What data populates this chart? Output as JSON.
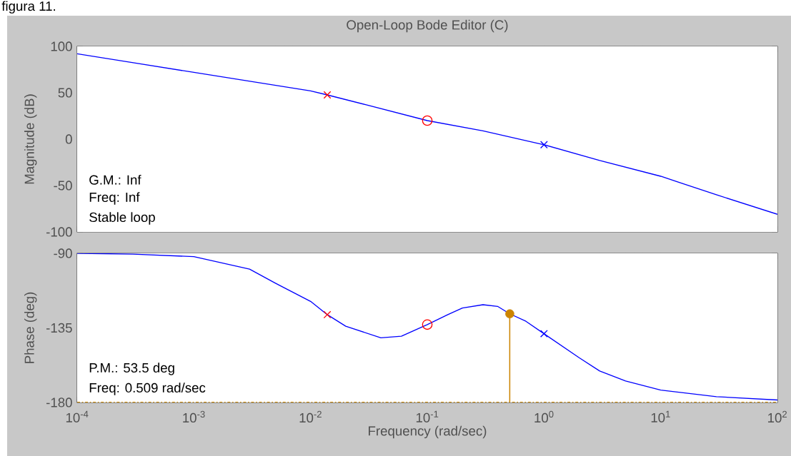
{
  "chart_data": [
    {
      "type": "line",
      "title": "Open-Loop Bode Editor (C)",
      "ylabel": "Magnitude (dB)",
      "log": "x",
      "tick_labels": "y",
      "xlim": [
        0.0001,
        100
      ],
      "ylim": [
        -100,
        100
      ],
      "xticks": [
        0.0001,
        0.001,
        0.01,
        0.1,
        1,
        10,
        100
      ],
      "yticks": [
        -100,
        -50,
        0,
        50,
        100
      ],
      "annotations": [
        "figura 11.",
        "G.M.: Inf",
        "Freq: Inf",
        "Stable loop"
      ],
      "series": [
        {
          "color": "#0000ff",
          "x": [
            0.0001,
            0.000316,
            0.001,
            0.00316,
            0.01,
            0.0139,
            0.03,
            0.1,
            0.3,
            1,
            3,
            10,
            30,
            100
          ],
          "values": [
            92,
            82,
            72,
            62,
            52,
            47.7,
            37,
            20,
            9,
            -6,
            -23,
            -40,
            -60,
            -81
          ]
        },
        {
          "type": "scatter",
          "color": "#ff0000",
          "marker": "cross",
          "x": [
            0.0139
          ],
          "values": [
            47.7
          ]
        },
        {
          "type": "scatter",
          "color": "#ff0000",
          "marker": "circle",
          "x": [
            0.1
          ],
          "values": [
            20
          ]
        },
        {
          "type": "scatter",
          "color": "#0000ff",
          "marker": "cross",
          "x": [
            1
          ],
          "values": [
            -6
          ]
        }
      ]
    },
    {
      "type": "line",
      "xlabel": "Frequency (rad/sec)",
      "ylabel": "Phase (deg)",
      "log": "x",
      "xlim": [
        0.0001,
        100
      ],
      "ylim": [
        -180,
        -90
      ],
      "xticks": [
        {
          "value": 0.0001,
          "label": "10$^{-4}$"
        },
        {
          "value": 0.001,
          "label": "10$^{-3}$"
        },
        {
          "value": 0.01,
          "label": "10$^{-2}$"
        },
        {
          "value": 0.1,
          "label": "10$^{-1}$"
        },
        {
          "value": 1,
          "label": "10$^{0}$"
        },
        {
          "value": 10,
          "label": "10$^{1}$"
        },
        {
          "value": 100,
          "label": "10$^{2}$"
        }
      ],
      "yticks": [
        -90,
        -135,
        -180
      ],
      "annotations": [
        "P.M.: 53.5 deg",
        "Freq: 0.509 rad/sec"
      ],
      "ref_lines": [
        {
          "axis": "y",
          "value": -180,
          "color": "#d08a00",
          "line_style": "dashdot"
        }
      ],
      "series": [
        {
          "color": "#0000ff",
          "x": [
            0.0001,
            0.0003,
            0.001,
            0.003,
            0.005,
            0.01,
            0.0139,
            0.02,
            0.04,
            0.06,
            0.1,
            0.15,
            0.2,
            0.3,
            0.4,
            0.509,
            0.7,
            1,
            2,
            3,
            5,
            10,
            30,
            100
          ],
          "values": [
            -90,
            -90.5,
            -92,
            -99.5,
            -108,
            -119,
            -127,
            -134,
            -141,
            -140,
            -133,
            -127,
            -123,
            -121,
            -122,
            -126.5,
            -131,
            -138.5,
            -153,
            -161,
            -167,
            -172.5,
            -176.5,
            -178.5
          ]
        },
        {
          "type": "scatter",
          "color": "#ff0000",
          "marker": "cross",
          "x": [
            0.0139
          ],
          "values": [
            -127
          ]
        },
        {
          "type": "scatter",
          "color": "#ff0000",
          "marker": "circle",
          "x": [
            0.1
          ],
          "values": [
            -133
          ]
        },
        {
          "type": "scatter",
          "color": "#0000ff",
          "marker": "cross",
          "x": [
            1
          ],
          "values": [
            -138.5
          ]
        },
        {
          "type": "lollipop",
          "color": "#cc8400",
          "x": [
            0.509
          ],
          "values": [
            -126.5
          ],
          "errors": [
            [
              -180,
              -126.5
            ]
          ]
        }
      ]
    }
  ]
}
